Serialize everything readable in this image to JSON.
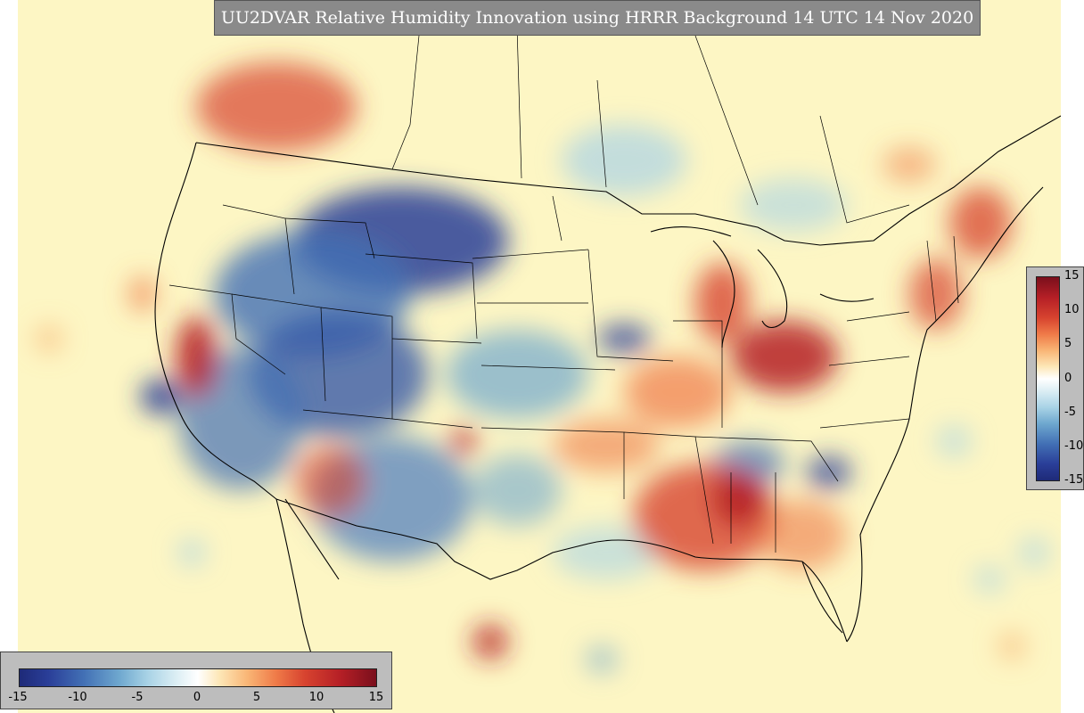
{
  "title": "UU2DVAR Relative Humidity Innovation using HRRR Background 14 UTC 14 Nov 2020",
  "colorbar_right": {
    "ticks": [
      "15",
      "10",
      "5",
      "0",
      "-5",
      "-10",
      "-15"
    ]
  },
  "colorbar_bottom": {
    "ticks": [
      "-15",
      "-10",
      "-5",
      "0",
      "5",
      "10",
      "15"
    ]
  },
  "colors": {
    "background": "#fdf6c4",
    "positive": "#b51f26",
    "negative": "#2a3e98",
    "neutral": "#ffffff",
    "border_lines": "#000000"
  }
}
